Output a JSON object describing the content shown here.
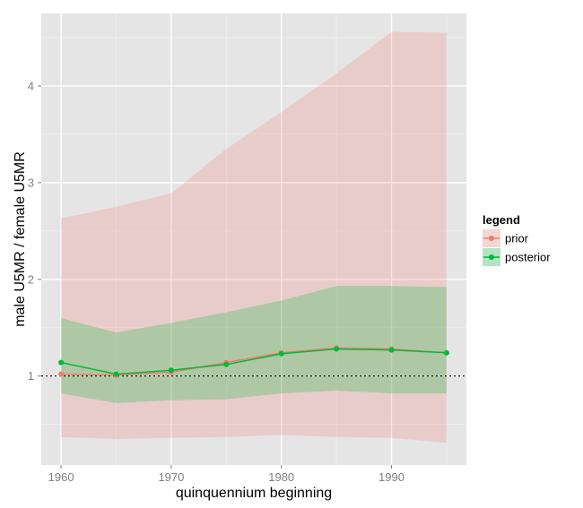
{
  "chart_data": {
    "type": "line",
    "xlabel": "quinquennium beginning",
    "ylabel": "male U5MR / female U5MR",
    "x": [
      1960,
      1965,
      1970,
      1975,
      1980,
      1985,
      1990,
      1995
    ],
    "xlim": [
      1958.2,
      1996.8
    ],
    "ylim": [
      0.08,
      4.75
    ],
    "x_ticks": [
      1960,
      1970,
      1980,
      1990
    ],
    "y_ticks": [
      1,
      2,
      3,
      4
    ],
    "reference_line": 1,
    "grid": true,
    "legend_placement": "right",
    "legend_title": "legend",
    "series": [
      {
        "name": "prior",
        "color": "#F8766D",
        "band_color": "#F8766D",
        "values": [
          1.02,
          1.01,
          1.04,
          1.14,
          1.24,
          1.29,
          1.28,
          1.24
        ],
        "lower": [
          0.37,
          0.35,
          0.36,
          0.37,
          0.39,
          0.37,
          0.36,
          0.31
        ],
        "upper": [
          2.63,
          2.75,
          2.89,
          3.35,
          3.73,
          4.13,
          4.56,
          4.55
        ]
      },
      {
        "name": "posterior",
        "color": "#00BA38",
        "band_color": "#00BA38",
        "values": [
          1.14,
          1.02,
          1.06,
          1.12,
          1.23,
          1.28,
          1.27,
          1.24
        ],
        "lower": [
          0.82,
          0.72,
          0.75,
          0.76,
          0.82,
          0.85,
          0.82,
          0.82
        ],
        "upper": [
          1.6,
          1.45,
          1.55,
          1.66,
          1.78,
          1.93,
          1.93,
          1.92
        ]
      }
    ]
  }
}
